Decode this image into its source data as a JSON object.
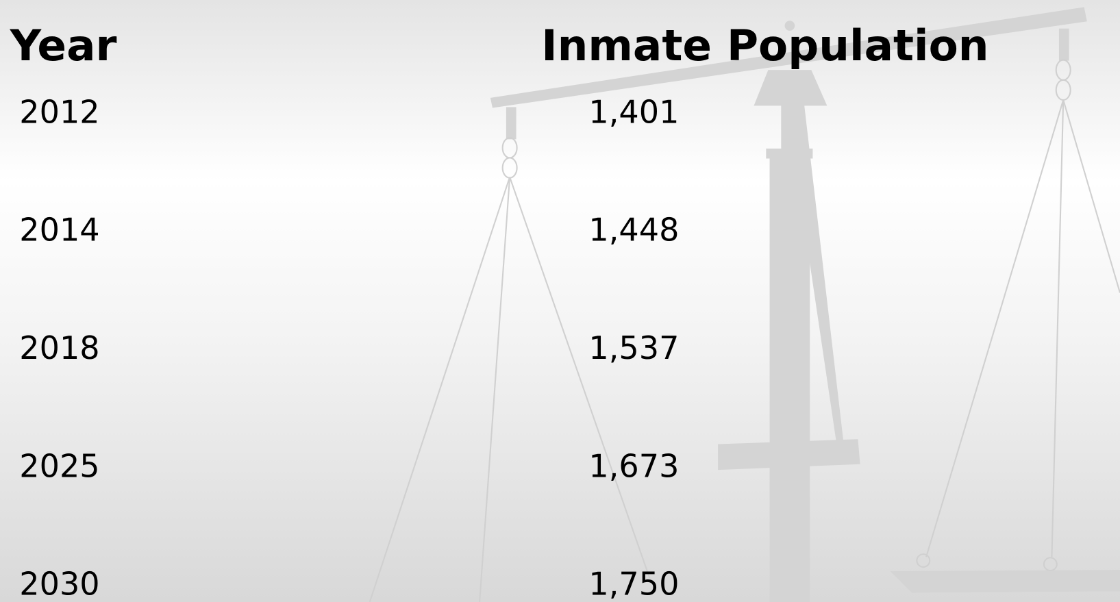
{
  "table": {
    "header": [
      "Year",
      "Inmate Population"
    ],
    "rows": [
      [
        "2012",
        "1,401"
      ],
      [
        "2014",
        "1,448"
      ],
      [
        "2018",
        "1,537"
      ],
      [
        "2025",
        "1,673"
      ],
      [
        "2030",
        "1,750"
      ]
    ]
  }
}
